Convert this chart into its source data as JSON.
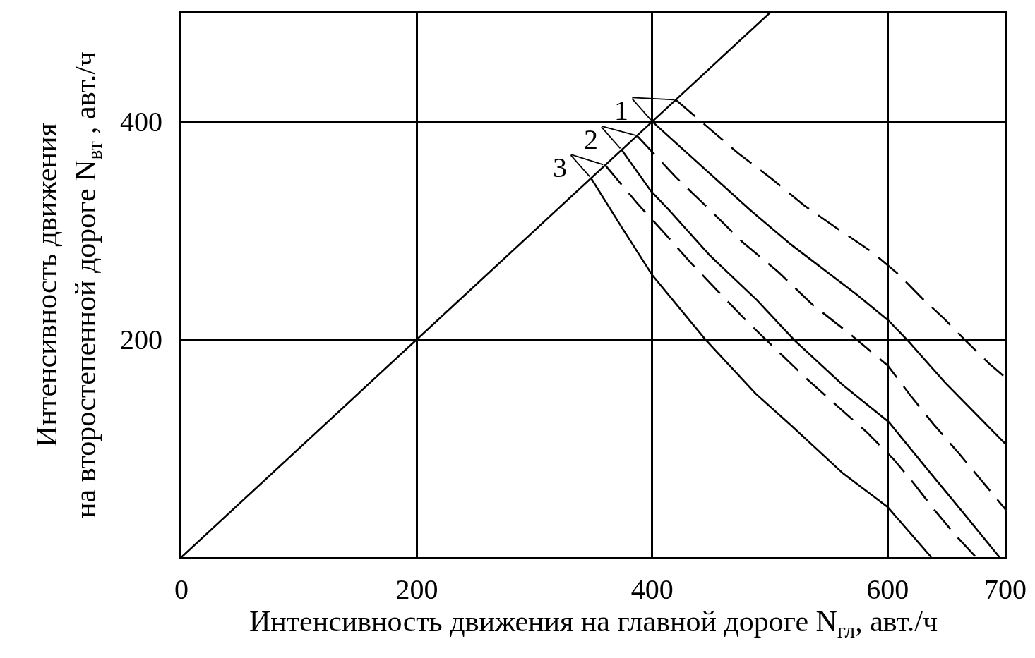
{
  "chart_data": {
    "type": "line",
    "xlabel": "Интенсивность движения на главной дороге N$_{гл}$, авт./ч",
    "ylabel": "Интенсивность движения\nна второстепенной дороге N$_{вт}$ , авт./ч",
    "xlim": [
      0,
      700
    ],
    "ylim": [
      0,
      500
    ],
    "xticks": [
      0,
      200,
      400,
      600,
      700
    ],
    "yticks": [
      200,
      400
    ],
    "grid": true,
    "series": [
      {
        "color": "#000000",
        "line_style": "solid",
        "x": [
          0,
          200,
          400,
          500
        ],
        "values": [
          0,
          200,
          400,
          500
        ]
      },
      {
        "color": "#000000",
        "line_style": "solid",
        "x": [
          400,
          483,
          518,
          574,
          601,
          617,
          649,
          700
        ],
        "values": [
          400,
          319,
          287,
          241,
          217,
          199,
          160,
          104
        ]
      },
      {
        "color": "#000000",
        "line_style": "dashed",
        "x": [
          420,
          447,
          473,
          502,
          529,
          557,
          587,
          610,
          629,
          648,
          667,
          686,
          700
        ],
        "values": [
          420,
          395,
          371,
          347,
          323,
          302,
          280,
          259,
          238,
          219,
          198,
          178,
          165
        ]
      },
      {
        "color": "#000000",
        "line_style": "solid",
        "x": [
          374,
          399,
          414,
          449,
          489,
          521,
          562,
          601,
          632,
          664,
          695
        ],
        "values": [
          374,
          336,
          319,
          277,
          236,
          199,
          158,
          124,
          83,
          41,
          0
        ]
      },
      {
        "color": "#000000",
        "line_style": "dashed",
        "x": [
          387,
          420,
          448,
          477,
          507,
          536,
          569,
          600,
          619,
          639,
          660,
          680,
          700
        ],
        "values": [
          387,
          349,
          320,
          289,
          262,
          232,
          204,
          176,
          149,
          122,
          96,
          70,
          44
        ]
      },
      {
        "color": "#000000",
        "line_style": "solid",
        "x": [
          348,
          374,
          400,
          445,
          488,
          518,
          562,
          600,
          637
        ],
        "values": [
          348,
          303,
          259,
          200,
          150,
          121,
          77,
          46,
          0
        ]
      },
      {
        "color": "#000000",
        "line_style": "dashed",
        "x": [
          360,
          388,
          410,
          433,
          456,
          480,
          504,
          530,
          557,
          582,
          605,
          622,
          640,
          657,
          675
        ],
        "values": [
          360,
          324,
          298,
          270,
          244,
          217,
          192,
          165,
          139,
          115,
          90,
          68,
          43,
          21,
          0
        ]
      }
    ],
    "annotations": [
      {
        "text": "1",
        "x": 400,
        "y": 400
      },
      {
        "text": "2",
        "x": 374,
        "y": 374
      },
      {
        "text": "3",
        "x": 348,
        "y": 348
      }
    ]
  }
}
